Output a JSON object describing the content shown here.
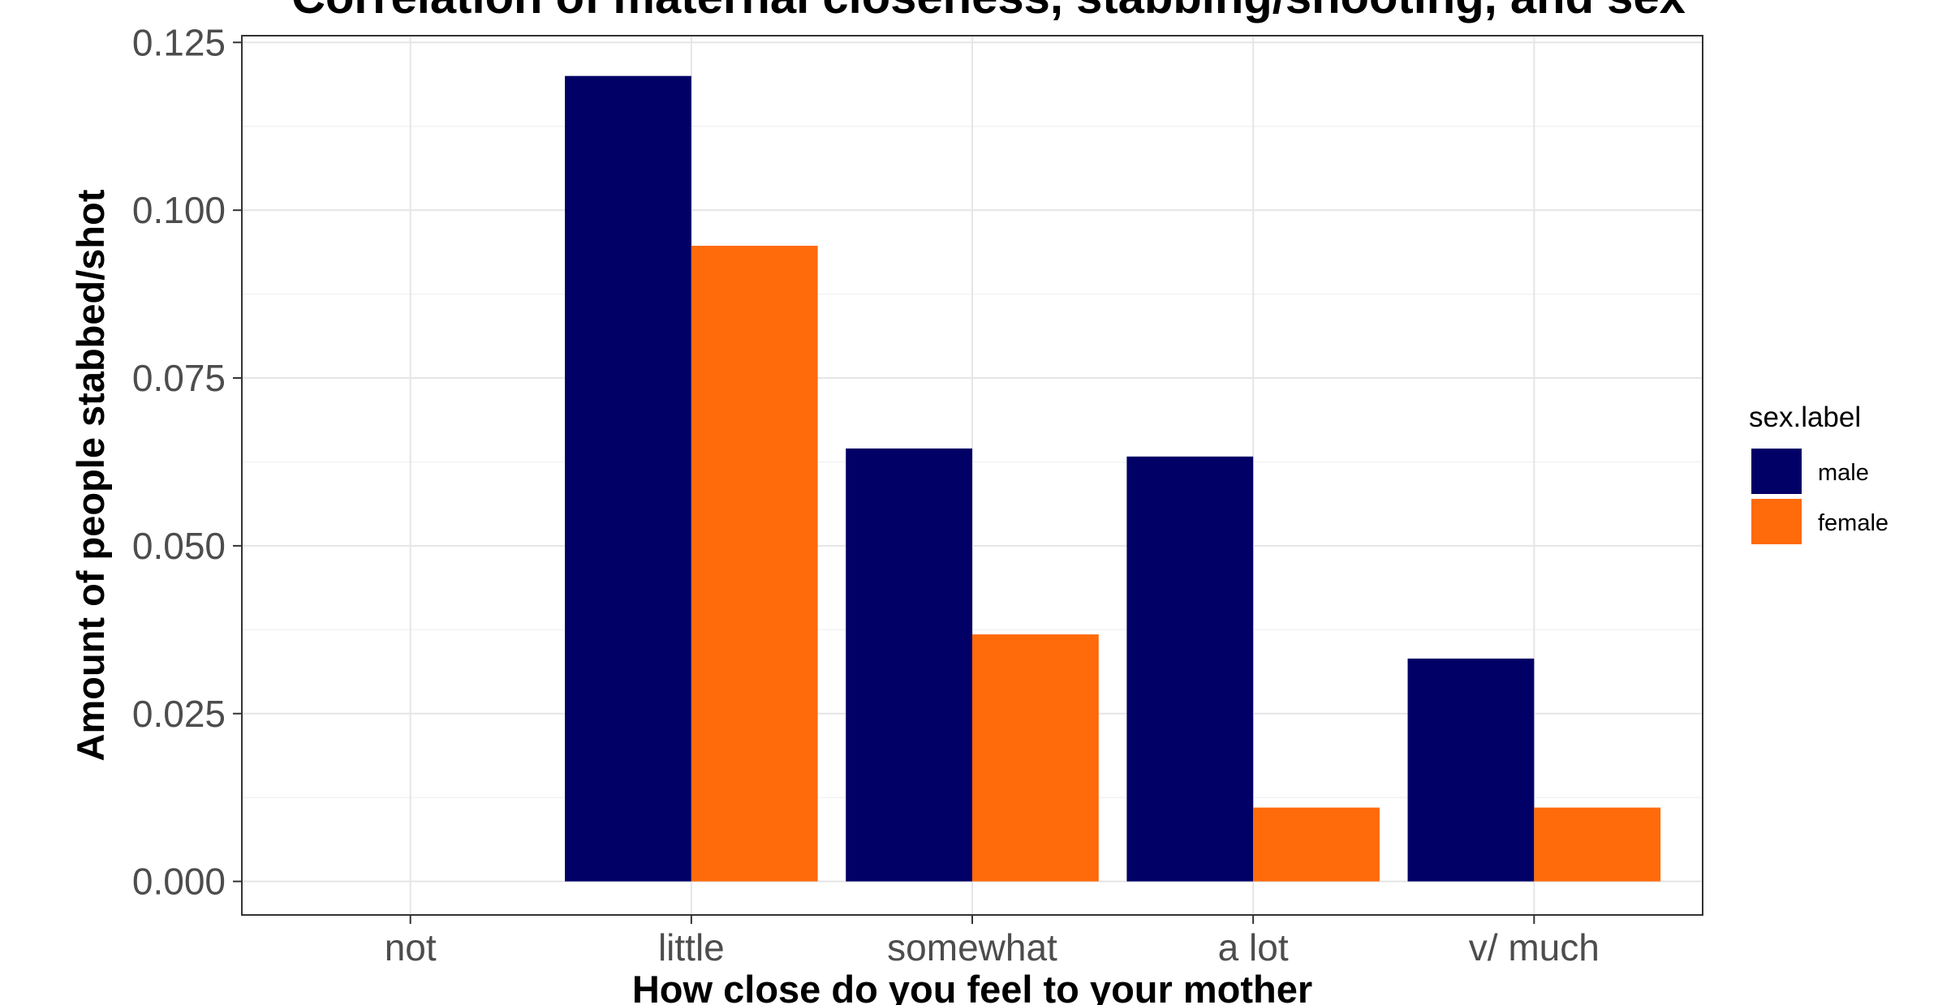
{
  "chart_data": {
    "type": "bar",
    "title": "Correlation of maternal closeness, stabbing/shooting, and sex",
    "xlabel": "How close do you feel to your mother",
    "ylabel": "Amount of people stabbed/shot",
    "categories": [
      "not",
      "little",
      "somewhat",
      "a lot",
      "v/ much"
    ],
    "series": [
      {
        "name": "male",
        "color": "#000066",
        "values": [
          0,
          0.12,
          0.0645,
          0.0633,
          0.0332
        ]
      },
      {
        "name": "female",
        "color": "#ff6a0a",
        "values": [
          0,
          0.0947,
          0.0368,
          0.011,
          0.011
        ]
      }
    ],
    "ylim": [
      -0.005,
      0.126
    ],
    "yticks": [
      0.0,
      0.025,
      0.05,
      0.075,
      0.1,
      0.125
    ],
    "ytick_labels": [
      "0.000",
      "0.025",
      "0.050",
      "0.075",
      "0.100",
      "0.125"
    ],
    "legend": {
      "title": "sex.label",
      "position": "right"
    },
    "grid": true,
    "theme": "bw"
  }
}
